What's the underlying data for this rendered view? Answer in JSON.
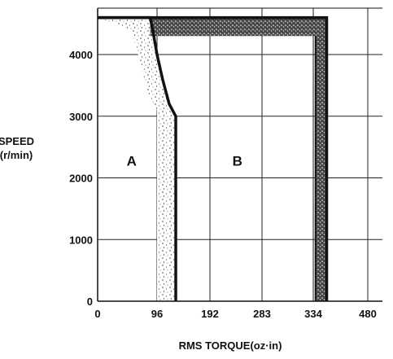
{
  "chart_data": {
    "type": "area",
    "title": "",
    "xlabel": "RMS TORQUE(oz·in)",
    "ylabel": [
      "SPEED",
      "(r/min)"
    ],
    "x_tick_labels": [
      "0",
      "96",
      "192",
      "283",
      "334",
      "480"
    ],
    "y_tick_labels": [
      "0",
      "1000",
      "2000",
      "3000",
      "4000"
    ],
    "y_ticks": [
      0,
      1000,
      2000,
      3000,
      4000
    ],
    "xlim": [
      0,
      480
    ],
    "ylim": [
      0,
      4800
    ],
    "grid": true,
    "regions": [
      {
        "name": "A",
        "label_at": {
          "x": 55,
          "y": 2200
        }
      },
      {
        "name": "B",
        "label_at": {
          "x": 240,
          "y": 2200
        }
      }
    ],
    "series": [
      {
        "role": "boundary-curve",
        "points": [
          [
            0,
            4600
          ],
          [
            85,
            4600
          ],
          [
            89,
            4400
          ],
          [
            96,
            4000
          ],
          [
            106,
            3600
          ],
          [
            118,
            3200
          ],
          [
            130,
            3000
          ],
          [
            130,
            0
          ]
        ]
      },
      {
        "role": "inner-shaded-band",
        "points": [
          [
            0,
            4600
          ],
          [
            55,
            4400
          ],
          [
            68,
            3900
          ],
          [
            80,
            3400
          ],
          [
            96,
            3100
          ],
          [
            96,
            0
          ]
        ]
      },
      {
        "role": "outer-boundary",
        "points": [
          [
            0,
            4600
          ],
          [
            370,
            4600
          ],
          [
            370,
            0
          ]
        ],
        "band": {
          "x_inner": 340,
          "y_inner": 4300
        }
      }
    ],
    "colors": {
      "line": "#111111",
      "stipple": "#555555",
      "grid": "#222222"
    }
  }
}
